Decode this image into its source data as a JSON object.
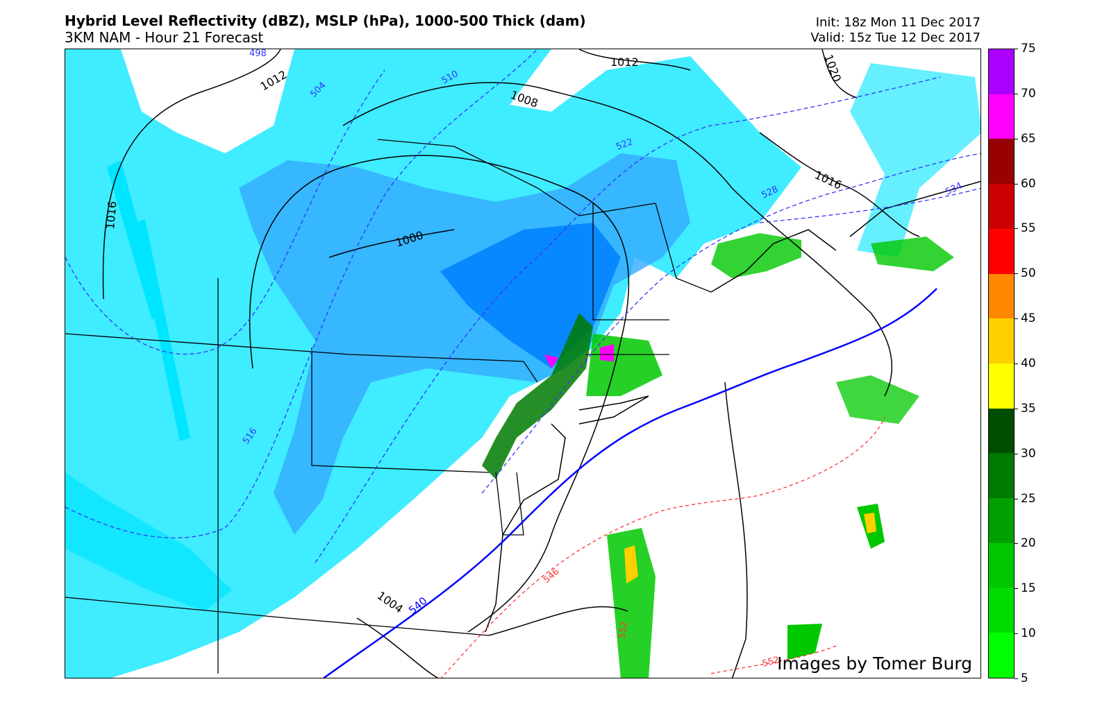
{
  "header": {
    "title": "Hybrid Level Reflectivity (dBZ),  MSLP (hPa),  1000-500 Thick (dam)",
    "subtitle": "3KM NAM - Hour 21 Forecast",
    "init": "Init: 18z Mon 11 Dec 2017",
    "valid": "Valid: 15z Tue 12 Dec 2017"
  },
  "map": {
    "credit": "Images by Tomer Burg",
    "isobar_labels": [
      "1012",
      "1012",
      "1008",
      "1016",
      "1000",
      "1004",
      "1016",
      "1020"
    ],
    "thickness_labels": [
      "498",
      "504",
      "510",
      "516",
      "522",
      "528",
      "534",
      "540",
      "546",
      "552",
      "552"
    ],
    "colors": {
      "isobar": "#000000",
      "thickness_cold": "#3333ff",
      "thickness_540": "#0000ff",
      "thickness_warm": "#ff3333",
      "snow_light": "#00e5ff",
      "snow_heavy": "#0080ff",
      "rain": "#00c800"
    }
  },
  "colorbar": {
    "ticks": [
      "75",
      "70",
      "65",
      "60",
      "55",
      "50",
      "45",
      "40",
      "35",
      "30",
      "25",
      "20",
      "15",
      "10",
      "5"
    ],
    "colors": [
      "#aa00ff",
      "#ff00ff",
      "#990000",
      "#cc0000",
      "#ff0000",
      "#ff8800",
      "#ffd000",
      "#ffff00",
      "#004d00",
      "#007a00",
      "#00a000",
      "#00c800",
      "#00dc00",
      "#00ff00"
    ]
  }
}
